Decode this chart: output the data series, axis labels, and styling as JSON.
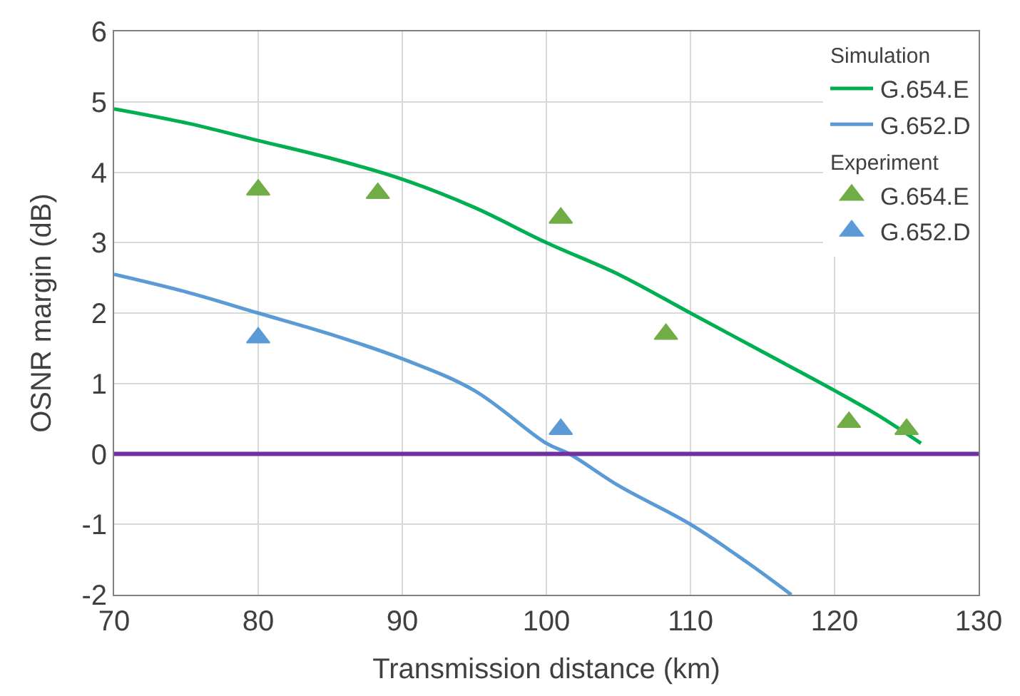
{
  "chart_data": {
    "type": "line",
    "xlabel": "Transmission distance (km)",
    "ylabel": "OSNR margin (dB)",
    "xlim": [
      70,
      130
    ],
    "xticks": [
      70,
      80,
      90,
      100,
      110,
      120,
      130
    ],
    "ylim": [
      -2,
      6
    ],
    "yticks": [
      -2,
      -1,
      0,
      1,
      2,
      3,
      4,
      5,
      6
    ],
    "grid": true,
    "legend": "top right",
    "annotations": [
      "Simulation",
      "Experiment"
    ],
    "ref_lines": [
      {
        "axis": "y",
        "value": 0,
        "color": "#7030a0"
      }
    ],
    "series": [
      {
        "name": "G.654.E",
        "color": "#00b050",
        "x": [
          70,
          75,
          80,
          85,
          90,
          95,
          100,
          105,
          110,
          115,
          120,
          123,
          126
        ],
        "values": [
          4.9,
          4.7,
          4.45,
          4.2,
          3.9,
          3.5,
          3.0,
          2.55,
          2.0,
          1.45,
          0.9,
          0.55,
          0.15
        ]
      },
      {
        "name": "G.652.D",
        "color": "#5b9bd5",
        "x": [
          70,
          75,
          80,
          85,
          90,
          95,
          100,
          101.6,
          105,
          110,
          114,
          117
        ],
        "values": [
          2.55,
          2.3,
          2.0,
          1.7,
          1.35,
          0.9,
          0.15,
          0.0,
          -0.45,
          -1.0,
          -1.55,
          -2.0
        ]
      },
      {
        "name": "G.654.E",
        "type": "scatter",
        "marker": "triangle",
        "color": "#70ad47",
        "x": [
          80,
          88.3,
          101,
          108.3,
          121,
          125
        ],
        "values": [
          3.75,
          3.7,
          3.35,
          1.7,
          0.45,
          0.35
        ]
      },
      {
        "name": "G.652.D",
        "type": "scatter",
        "marker": "triangle",
        "color": "#5b9bd5",
        "x": [
          80,
          101
        ],
        "values": [
          1.65,
          0.35
        ]
      }
    ]
  }
}
